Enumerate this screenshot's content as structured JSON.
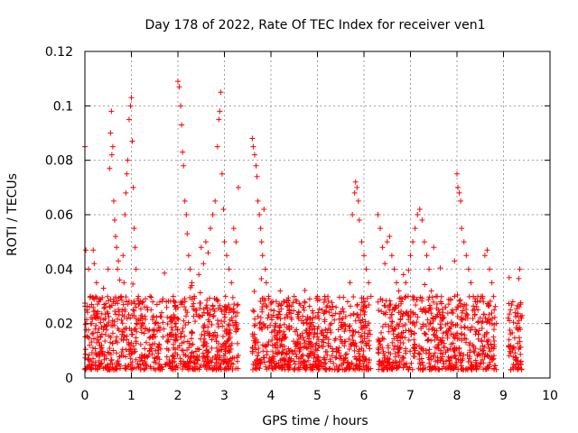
{
  "chart_data": {
    "type": "scatter",
    "title": "Day 178 of 2022, Rate Of TEC Index for receiver ven1",
    "xlabel": "GPS time / hours",
    "ylabel": "ROTI / TECUs",
    "xlim": [
      0,
      10
    ],
    "ylim": [
      0,
      0.12
    ],
    "xticks": [
      0,
      1,
      2,
      3,
      4,
      5,
      6,
      7,
      8,
      9,
      10
    ],
    "yticks": [
      0,
      0.02,
      0.04,
      0.06,
      0.08,
      0.1,
      0.12
    ],
    "xtick_labels": [
      "0",
      "1",
      "2",
      "3",
      "4",
      "5",
      "6",
      "7",
      "8",
      "9",
      "10"
    ],
    "ytick_labels": [
      "0",
      "0.02",
      "0.04",
      "0.06",
      "0.08",
      "0.1",
      "0.12"
    ],
    "grid": true,
    "marker": "plus",
    "series": [
      {
        "name": "ROTI",
        "color": "#ff0000",
        "x": [
          0.0,
          0.02,
          0.04,
          0.06,
          0.08,
          0.1,
          0.12,
          0.15,
          0.18,
          0.2,
          0.22,
          0.25,
          0.28,
          0.3,
          0.33,
          0.36,
          0.4,
          0.43,
          0.46,
          0.5,
          0.53,
          0.55,
          0.57,
          0.58,
          0.6,
          0.62,
          0.64,
          0.66,
          0.68,
          0.7,
          0.72,
          0.75,
          0.78,
          0.8,
          0.82,
          0.84,
          0.86,
          0.88,
          0.9,
          0.92,
          0.95,
          0.98,
          1.0,
          1.02,
          1.04,
          1.06,
          1.08,
          1.1,
          1.15,
          1.2,
          1.25,
          1.3,
          1.35,
          1.4,
          1.45,
          1.5,
          1.55,
          1.6,
          1.65,
          1.7,
          1.75,
          1.8,
          1.85,
          1.9,
          1.95,
          2.0,
          2.03,
          2.06,
          2.08,
          2.1,
          2.12,
          2.15,
          2.18,
          2.2,
          2.23,
          2.26,
          2.3,
          2.35,
          2.4,
          2.45,
          2.5,
          2.55,
          2.6,
          2.65,
          2.7,
          2.75,
          2.8,
          2.85,
          2.88,
          2.9,
          2.92,
          2.95,
          2.98,
          3.0,
          3.05,
          3.1,
          3.15,
          3.2,
          3.25,
          3.3,
          3.6,
          3.62,
          3.65,
          3.68,
          3.7,
          3.72,
          3.75,
          3.78,
          3.8,
          3.82,
          3.85,
          3.88,
          3.9,
          3.95,
          4.0,
          4.1,
          4.2,
          4.3,
          4.4,
          4.5,
          4.6,
          4.7,
          4.8,
          4.9,
          5.0,
          5.1,
          5.2,
          5.3,
          5.4,
          5.5,
          5.6,
          5.65,
          5.7,
          5.75,
          5.8,
          5.82,
          5.85,
          5.88,
          5.9,
          5.95,
          6.0,
          6.05,
          6.1,
          6.15,
          6.3,
          6.35,
          6.4,
          6.45,
          6.5,
          6.55,
          6.6,
          6.65,
          6.7,
          6.75,
          6.8,
          6.85,
          6.9,
          6.95,
          7.0,
          7.05,
          7.1,
          7.15,
          7.2,
          7.25,
          7.3,
          7.35,
          7.4,
          7.45,
          7.5,
          7.55,
          7.6,
          7.65,
          7.7,
          7.75,
          7.8,
          7.85,
          7.9,
          7.95,
          8.0,
          8.02,
          8.05,
          8.08,
          8.1,
          8.15,
          8.2,
          8.25,
          8.3,
          8.35,
          8.4,
          8.45,
          8.5,
          8.55,
          8.6,
          8.65,
          8.7,
          8.75,
          8.8,
          8.85,
          9.1,
          9.15,
          9.2,
          9.25,
          9.3,
          9.35
        ],
        "y": [
          0.085,
          0.047,
          0.025,
          0.015,
          0.04,
          0.012,
          0.03,
          0.02,
          0.047,
          0.042,
          0.018,
          0.035,
          0.014,
          0.028,
          0.022,
          0.012,
          0.033,
          0.026,
          0.019,
          0.04,
          0.077,
          0.09,
          0.098,
          0.082,
          0.085,
          0.065,
          0.058,
          0.052,
          0.048,
          0.04,
          0.043,
          0.036,
          0.03,
          0.025,
          0.045,
          0.035,
          0.06,
          0.068,
          0.075,
          0.08,
          0.095,
          0.1,
          0.103,
          0.087,
          0.07,
          0.055,
          0.048,
          0.04,
          0.03,
          0.022,
          0.028,
          0.018,
          0.025,
          0.03,
          0.015,
          0.02,
          0.027,
          0.012,
          0.024,
          0.018,
          0.028,
          0.014,
          0.022,
          0.03,
          0.016,
          0.109,
          0.107,
          0.1,
          0.093,
          0.083,
          0.078,
          0.065,
          0.06,
          0.053,
          0.045,
          0.04,
          0.035,
          0.03,
          0.025,
          0.038,
          0.048,
          0.042,
          0.05,
          0.046,
          0.055,
          0.06,
          0.065,
          0.085,
          0.095,
          0.098,
          0.105,
          0.075,
          0.062,
          0.05,
          0.045,
          0.04,
          0.035,
          0.055,
          0.05,
          0.07,
          0.088,
          0.085,
          0.082,
          0.078,
          0.074,
          0.065,
          0.06,
          0.055,
          0.05,
          0.045,
          0.062,
          0.04,
          0.035,
          0.03,
          0.025,
          0.02,
          0.032,
          0.022,
          0.018,
          0.03,
          0.024,
          0.02,
          0.016,
          0.022,
          0.018,
          0.025,
          0.015,
          0.02,
          0.026,
          0.014,
          0.018,
          0.028,
          0.035,
          0.06,
          0.068,
          0.072,
          0.07,
          0.065,
          0.058,
          0.05,
          0.045,
          0.04,
          0.035,
          0.03,
          0.06,
          0.055,
          0.048,
          0.042,
          0.05,
          0.052,
          0.045,
          0.04,
          0.035,
          0.032,
          0.028,
          0.038,
          0.035,
          0.03,
          0.045,
          0.05,
          0.055,
          0.06,
          0.062,
          0.058,
          0.05,
          0.045,
          0.04,
          0.032,
          0.048,
          0.03,
          0.025,
          0.028,
          0.022,
          0.026,
          0.02,
          0.018,
          0.025,
          0.03,
          0.075,
          0.07,
          0.068,
          0.065,
          0.055,
          0.05,
          0.045,
          0.04,
          0.035,
          0.03,
          0.028,
          0.025,
          0.022,
          0.03,
          0.045,
          0.047,
          0.04,
          0.035,
          0.025,
          0.02,
          0.022,
          0.025,
          0.028,
          0.024,
          0.02,
          0.04
        ]
      }
    ],
    "gaps_hours": [
      [
        3.3,
        3.6
      ],
      [
        6.15,
        6.3
      ],
      [
        8.85,
        9.1
      ]
    ],
    "dense_band": {
      "low": 0.003,
      "high": 0.03,
      "note": "dense cluster of ROTI values between roughly 0.003 and 0.03 TECU/min across all observed intervals"
    }
  }
}
